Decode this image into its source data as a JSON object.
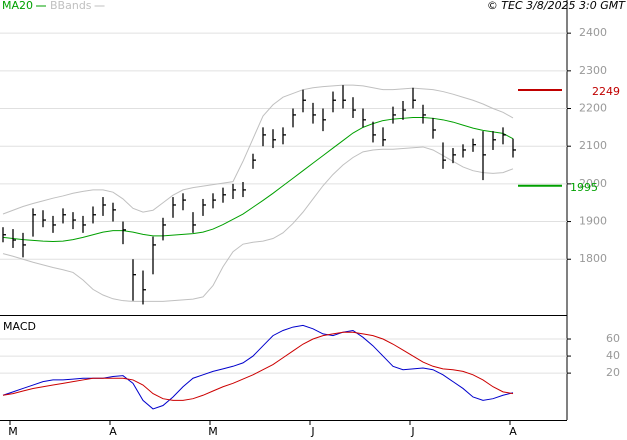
{
  "chart_data": [
    {
      "type": "ohlc",
      "source": "© TEC 3/8/2025 3:0 GMT",
      "categories": [
        null,
        "M",
        null,
        null,
        null,
        null,
        null,
        null,
        null,
        null,
        null,
        "A",
        null,
        null,
        null,
        null,
        null,
        null,
        null,
        null,
        null,
        "M",
        null,
        null,
        null,
        null,
        null,
        null,
        null,
        null,
        null,
        "J",
        null,
        null,
        null,
        null,
        null,
        null,
        null,
        null,
        null,
        "J",
        null,
        null,
        null,
        null,
        null,
        null,
        null,
        null,
        null,
        "A"
      ],
      "close": [
        1865,
        1851,
        1838,
        1918,
        1904,
        1891,
        1918,
        1904,
        1891,
        1918,
        1944,
        1931,
        1878,
        1759,
        1719,
        1838,
        1891,
        1944,
        1957,
        1891,
        1944,
        1957,
        1971,
        1984,
        1984,
        2063,
        2130,
        2117,
        2130,
        2183,
        2222,
        2183,
        2170,
        2222,
        2222,
        2196,
        2170,
        2130,
        2117,
        2183,
        2196,
        2222,
        2183,
        2143,
        2063,
        2077,
        2090,
        2104,
        2077,
        2117,
        2130,
        2090
      ],
      "high": [
        1885,
        1880,
        1870,
        1935,
        1930,
        1915,
        1935,
        1925,
        1915,
        1940,
        1965,
        1950,
        1900,
        1800,
        1770,
        1860,
        1910,
        1965,
        1975,
        1925,
        1960,
        1975,
        1990,
        2000,
        2005,
        2080,
        2150,
        2145,
        2150,
        2200,
        2250,
        2215,
        2200,
        2245,
        2262,
        2230,
        2200,
        2165,
        2150,
        2205,
        2220,
        2255,
        2210,
        2175,
        2110,
        2095,
        2105,
        2120,
        2140,
        2140,
        2150,
        2120
      ],
      "low": [
        1845,
        1830,
        1805,
        1860,
        1885,
        1870,
        1895,
        1880,
        1870,
        1895,
        1915,
        1900,
        1840,
        1690,
        1680,
        1760,
        1850,
        1910,
        1930,
        1870,
        1915,
        1935,
        1950,
        1960,
        1965,
        2040,
        2100,
        2095,
        2105,
        2150,
        2190,
        2160,
        2140,
        2190,
        2200,
        2175,
        2150,
        2110,
        2100,
        2160,
        2170,
        2200,
        2160,
        2120,
        2040,
        2055,
        2070,
        2085,
        2010,
        2090,
        2105,
        2070
      ],
      "color": "#000000",
      "series": [
        {
          "name": "MA20",
          "color": "#00a000",
          "values": [
            1858,
            1855,
            1852,
            1850,
            1848,
            1847,
            1848,
            1852,
            1858,
            1865,
            1872,
            1876,
            1876,
            1872,
            1866,
            1862,
            1862,
            1864,
            1866,
            1868,
            1872,
            1880,
            1892,
            1906,
            1920,
            1938,
            1956,
            1975,
            1995,
            2015,
            2035,
            2055,
            2075,
            2095,
            2115,
            2135,
            2150,
            2160,
            2168,
            2172,
            2174,
            2176,
            2176,
            2174,
            2170,
            2164,
            2156,
            2148,
            2142,
            2138,
            2134,
            2120
          ]
        },
        {
          "name": "BBands",
          "color": "#c0c0c0",
          "values": [
            1920,
            1930,
            1940,
            1948,
            1955,
            1962,
            1968,
            1975,
            1980,
            1984,
            1984,
            1978,
            1960,
            1935,
            1925,
            1930,
            1950,
            1970,
            1984,
            1990,
            1994,
            1998,
            2002,
            2006,
            2060,
            2120,
            2180,
            2210,
            2230,
            2240,
            2250,
            2255,
            2258,
            2260,
            2262,
            2262,
            2260,
            2255,
            2250,
            2250,
            2252,
            2254,
            2252,
            2250,
            2245,
            2238,
            2230,
            2222,
            2212,
            2200,
            2190,
            2175
          ],
          "lower": [
            1815,
            1808,
            1800,
            1792,
            1785,
            1778,
            1772,
            1765,
            1745,
            1720,
            1705,
            1695,
            1690,
            1688,
            1688,
            1688,
            1688,
            1690,
            1692,
            1694,
            1700,
            1730,
            1780,
            1820,
            1840,
            1845,
            1848,
            1855,
            1870,
            1895,
            1925,
            1960,
            1995,
            2025,
            2050,
            2070,
            2085,
            2090,
            2092,
            2092,
            2094,
            2096,
            2098,
            2090,
            2075,
            2060,
            2045,
            2035,
            2030,
            2028,
            2030,
            2040
          ]
        }
      ],
      "levels": [
        {
          "value": 2249,
          "color": "#c00000"
        },
        {
          "value": 1995,
          "color": "#00a000"
        }
      ],
      "ylim": [
        1652,
        2488
      ],
      "yticks": [
        1800,
        1900,
        2000,
        2100,
        2200,
        2300,
        2400
      ],
      "grid": true
    },
    {
      "type": "line",
      "title": "MACD",
      "series": [
        {
          "color": "#0000cc",
          "values": [
            -6,
            -2,
            2,
            6,
            10,
            12,
            12,
            13,
            14,
            14,
            14,
            16,
            17,
            8,
            -12,
            -22,
            -18,
            -8,
            4,
            14,
            18,
            22,
            25,
            28,
            32,
            40,
            52,
            64,
            70,
            74,
            76,
            72,
            66,
            64,
            68,
            70,
            62,
            52,
            40,
            28,
            24,
            25,
            26,
            24,
            18,
            10,
            2,
            -8,
            -12,
            -10,
            -6,
            -3
          ]
        },
        {
          "color": "#cc0000",
          "values": [
            -6,
            -4,
            -1,
            2,
            4,
            6,
            8,
            10,
            12,
            14,
            14,
            14,
            14,
            12,
            6,
            -4,
            -10,
            -12,
            -12,
            -10,
            -6,
            -1,
            4,
            8,
            13,
            18,
            24,
            30,
            38,
            46,
            54,
            60,
            64,
            66,
            68,
            68,
            66,
            64,
            60,
            54,
            47,
            40,
            33,
            28,
            25,
            24,
            22,
            18,
            12,
            4,
            -2,
            -4
          ]
        }
      ],
      "ylim": [
        -35,
        87
      ],
      "yticks": [
        20,
        40,
        60
      ],
      "grid": true
    }
  ]
}
